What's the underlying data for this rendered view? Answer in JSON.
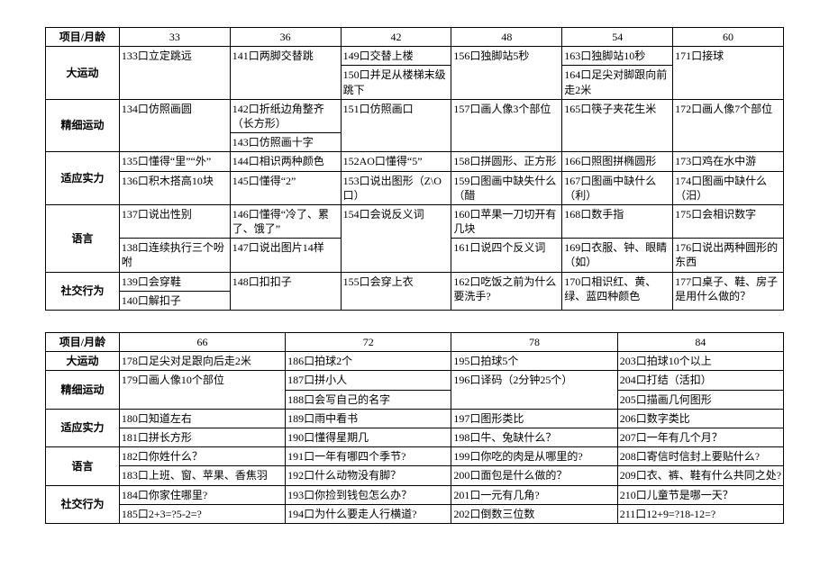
{
  "table1": {
    "header": [
      "项目/月龄",
      "33",
      "36",
      "42",
      "48",
      "54",
      "60"
    ],
    "rows": [
      {
        "cat": "大运动",
        "rs": 2,
        "cells": [
          {
            "t": "133口立定跳远",
            "rs": 2
          },
          {
            "t": "141口两脚交替跳",
            "rs": 2
          },
          {
            "t": "149口交替上楼"
          },
          {
            "t": "156口独脚站5秒",
            "rs": 2
          },
          {
            "t": "163口独脚站10秒"
          },
          {
            "t": "171口接球",
            "rs": 2
          }
        ]
      },
      {
        "cells": [
          {
            "t": "150口并足从楼梯末级跳下"
          },
          {
            "t": "164口足尖对脚跟向前走2米"
          }
        ]
      },
      {
        "cat": "精细运动",
        "rs": 2,
        "cells": [
          {
            "t": "134口仿照画圆",
            "rs": 2
          },
          {
            "t": "142口折纸边角整齐（长方形）"
          },
          {
            "t": "151口仿照画口",
            "rs": 2
          },
          {
            "t": "157口画人像3个部位",
            "rs": 2
          },
          {
            "t": "165口筷子夹花生米",
            "rs": 2
          },
          {
            "t": "172口画人像7个部位",
            "rs": 2
          }
        ]
      },
      {
        "cells": [
          {
            "t": "143口仿照画十字"
          }
        ]
      },
      {
        "cat": "适应实力",
        "rs": 2,
        "cells": [
          {
            "t": "135口懂得“里”“外”"
          },
          {
            "t": "144口相识两种颜色"
          },
          {
            "t": "152AO口懂得“5”"
          },
          {
            "t": "158口拼圆形、正方形"
          },
          {
            "t": "166口照图拼椭圆形"
          },
          {
            "t": "173口鸡在水中游"
          }
        ]
      },
      {
        "cells": [
          {
            "t": "136口积木搭高10块"
          },
          {
            "t": "145口懂得“2”"
          },
          {
            "t": "153口说出图形（Z\\O口）"
          },
          {
            "t": "159口图画中缺失什么（醋"
          },
          {
            "t": "167口图画中缺什么（利）"
          },
          {
            "t": "174口图画中缺什么（汨）"
          }
        ]
      },
      {
        "cat": "语言",
        "rs": 2,
        "cells": [
          {
            "t": "137口说出性别"
          },
          {
            "t": "146口懂得“冷了、累了、饿了”"
          },
          {
            "t": "154口会说反义词",
            "rs": 2
          },
          {
            "t": "160口苹果一刀切开有几块"
          },
          {
            "t": "168口数手指"
          },
          {
            "t": "175口会相识数字"
          }
        ]
      },
      {
        "cells": [
          {
            "t": "138口连续执行三个吩咐"
          },
          {
            "t": "147口说出图片14样"
          },
          {
            "t": "161口说四个反义词"
          },
          {
            "t": "169口衣服、钟、眼睛（如）"
          },
          {
            "t": "176口说出两种圆形的东西"
          }
        ]
      },
      {
        "cat": "社交行为",
        "rs": 2,
        "cells": [
          {
            "t": "139口会穿鞋"
          },
          {
            "t": "148口扣扣子",
            "rs": 2
          },
          {
            "t": "155口会穿上衣",
            "rs": 2
          },
          {
            "t": "162口吃饭之前为什么要洗手?",
            "rs": 2
          },
          {
            "t": "170口相识红、黄、绿、蓝四种颜色",
            "rs": 2
          },
          {
            "t": "177口桌子、鞋、房子是用什么做的？",
            "rs": 2
          }
        ]
      },
      {
        "cells": [
          {
            "t": "140口解扣子"
          }
        ]
      }
    ]
  },
  "table2": {
    "header": [
      "项目/月龄",
      "66",
      "72",
      "78",
      "84"
    ],
    "rows": [
      {
        "cat": "大运动",
        "cells": [
          {
            "t": "178口足尖对足跟向后走2米"
          },
          {
            "t": "186口拍球2个"
          },
          {
            "t": "195口拍球5个"
          },
          {
            "t": "203口拍球10个以上"
          }
        ]
      },
      {
        "cat": "精细运动",
        "rs": 2,
        "cells": [
          {
            "t": "179口画人像10个部位",
            "rs": 2
          },
          {
            "t": "187口拼小人"
          },
          {
            "t": "196口译码（2分钟25个）",
            "rs": 2
          },
          {
            "t": "204口打结（活扣）"
          }
        ]
      },
      {
        "cells": [
          {
            "t": "188口会写自己的名字"
          },
          {
            "t": "205口描画几何图形"
          }
        ]
      },
      {
        "cat": "适应实力",
        "rs": 2,
        "cells": [
          {
            "t": "180口知道左右"
          },
          {
            "t": "189口雨中看书"
          },
          {
            "t": "197口图形类比"
          },
          {
            "t": "206口数字类比"
          }
        ]
      },
      {
        "cells": [
          {
            "t": "181口拼长方形"
          },
          {
            "t": "190口懂得星期几"
          },
          {
            "t": "198口牛、兔缺什么？"
          },
          {
            "t": "207口一年有几个月？"
          }
        ]
      },
      {
        "cat": "语言",
        "rs": 2,
        "cells": [
          {
            "t": "182口你姓什么？"
          },
          {
            "t": "191口一年有哪四个季节?"
          },
          {
            "t": "199口你吃的肉是从哪里的?"
          },
          {
            "t": "208口寄信时信封上要贴什么?"
          }
        ]
      },
      {
        "cells": [
          {
            "t": "183口上班、窗、苹果、香焦羽"
          },
          {
            "t": "192口什么动物没有脚？"
          },
          {
            "t": "200口面包是什么做的？"
          },
          {
            "t": "209口衣、裤、鞋有什么共同之处?"
          }
        ]
      },
      {
        "cat": "社交行为",
        "rs": 2,
        "cells": [
          {
            "t": "184口你家住哪里?"
          },
          {
            "t": "193口你捡到钱包怎么办？"
          },
          {
            "t": "201口一元有几角?"
          },
          {
            "t": "210口儿童节是哪一天？"
          }
        ]
      },
      {
        "cells": [
          {
            "t": "185口2+3=?5-2=?"
          },
          {
            "t": "194口为什么要走人行横道?"
          },
          {
            "t": "202口倒数三位数"
          },
          {
            "t": "211口12+9=?18-12=?"
          }
        ]
      }
    ]
  }
}
